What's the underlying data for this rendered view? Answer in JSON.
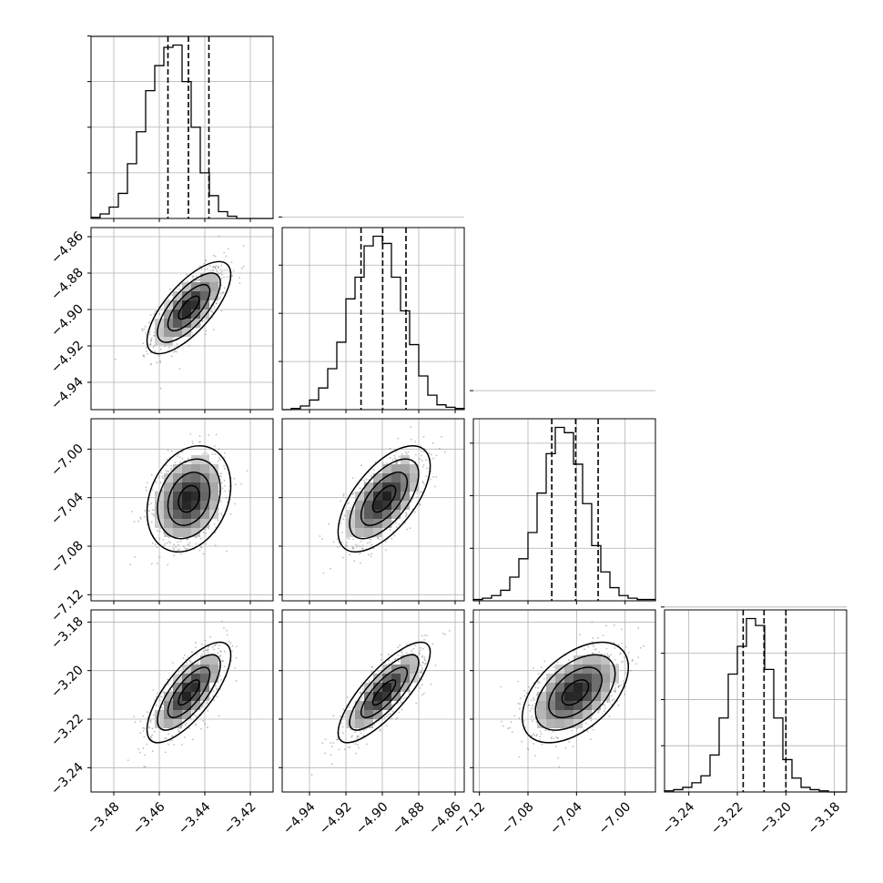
{
  "chart_data": {
    "type": "corner",
    "n_params": 4,
    "params": [
      {
        "range": [
          -3.49,
          -3.41
        ],
        "ticks": [
          -3.48,
          -3.46,
          -3.44,
          -3.42
        ],
        "tick_labels": [
          "−3.48",
          "−3.46",
          "−3.44",
          "−3.42"
        ],
        "quantiles": [
          -3.4562,
          -3.4472,
          -3.4382
        ],
        "hist_counts": [
          0.5,
          2,
          5,
          11,
          24,
          38,
          56,
          67,
          75,
          76,
          60,
          40,
          20,
          10,
          3,
          1,
          0,
          0,
          0,
          0
        ],
        "peak": -3.447,
        "sigma": 0.008
      },
      {
        "range": [
          -4.955,
          -4.855
        ],
        "ticks": [
          -4.94,
          -4.92,
          -4.9,
          -4.88,
          -4.86
        ],
        "tick_labels": [
          "−4.94",
          "−4.92",
          "−4.90",
          "−4.88",
          "−4.86"
        ],
        "quantiles": [
          -4.9117,
          -4.8998,
          -4.887
        ],
        "hist_counts": [
          0,
          0.5,
          1.5,
          4,
          9,
          17,
          28,
          46,
          55,
          68,
          72,
          69,
          55,
          41,
          27,
          14,
          6,
          2,
          1,
          0.5
        ],
        "peak": -4.899,
        "sigma": 0.011
      },
      {
        "range": [
          -7.125,
          -6.975
        ],
        "ticks": [
          -7.12,
          -7.08,
          -7.04,
          -7.0
        ],
        "tick_labels": [
          "−7.12",
          "−7.08",
          "−7.04",
          "−7.00"
        ],
        "quantiles": [
          -7.0604,
          -7.0407,
          -7.0222
        ],
        "hist_counts": [
          0.5,
          1,
          2,
          4,
          9,
          16,
          26,
          41,
          56,
          66,
          64,
          52,
          37,
          21,
          11,
          5,
          2,
          1,
          0.5,
          0.5
        ],
        "peak": -7.041,
        "sigma": 0.019
      },
      {
        "range": [
          -3.25,
          -3.175
        ],
        "ticks": [
          -3.24,
          -3.22,
          -3.2,
          -3.18
        ],
        "tick_labels": [
          "−3.24",
          "−3.22",
          "−3.20",
          "−3.18"
        ],
        "quantiles": [
          -3.2176,
          -3.209,
          -3.2
        ],
        "hist_counts": [
          0.5,
          1,
          2,
          4,
          7,
          16,
          32,
          51,
          63,
          75,
          72,
          53,
          32,
          14,
          6,
          2,
          1,
          0.5,
          0,
          0
        ],
        "peak": -3.209,
        "sigma": 0.009
      }
    ],
    "correlations": {
      "1-0": 0.72,
      "2-0": 0.25,
      "2-1": 0.62,
      "3-0": 0.74,
      "3-1": 0.8,
      "3-2": 0.5
    },
    "contour_levels_sigma": [
      0.5,
      1.0,
      1.5,
      2.0
    ],
    "grid": true,
    "quantile_line_style": "dashed"
  }
}
